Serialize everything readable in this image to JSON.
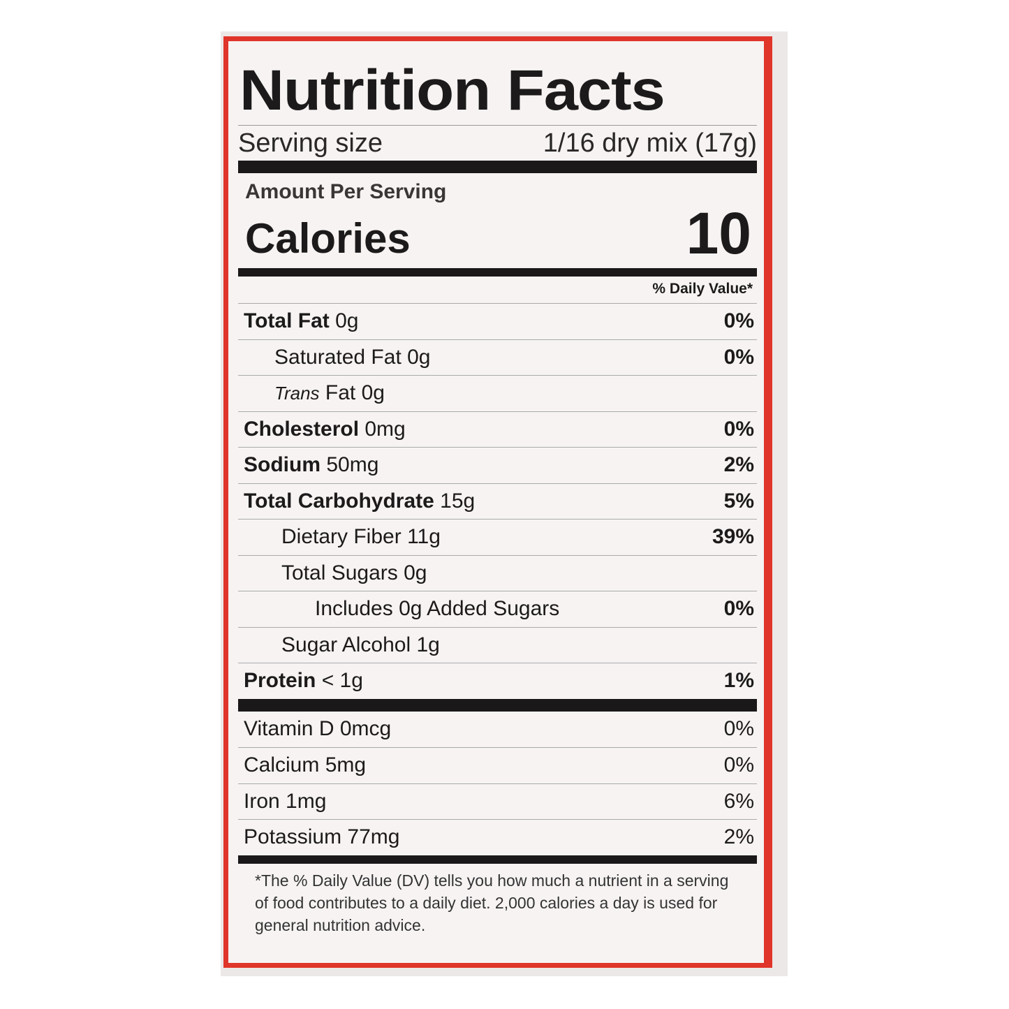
{
  "title": "Nutrition Facts",
  "serving": {
    "label": "Serving size",
    "value": "1/16 dry mix (17g)"
  },
  "amount_per_serving": "Amount Per Serving",
  "calories": {
    "label": "Calories",
    "value": "10"
  },
  "daily_value_header": "% Daily Value*",
  "nutrients": [
    {
      "name": "Total Fat",
      "amount": "0g",
      "dv": "0%"
    },
    {
      "name": "Saturated Fat",
      "amount": "0g",
      "dv": "0%"
    },
    {
      "name": "Trans",
      "name2": "Fat",
      "amount": "0g",
      "dv": ""
    },
    {
      "name": "Cholesterol",
      "amount": "0mg",
      "dv": "0%"
    },
    {
      "name": "Sodium",
      "amount": "50mg",
      "dv": "2%"
    },
    {
      "name": "Total Carbohydrate",
      "amount": "15g",
      "dv": "5%"
    },
    {
      "name": "Dietary Fiber",
      "amount": "11g",
      "dv": "39%"
    },
    {
      "name": "Total Sugars",
      "amount": "0g",
      "dv": ""
    },
    {
      "name": "Includes 0g Added Sugars",
      "amount": "",
      "dv": "0%"
    },
    {
      "name": "Sugar Alcohol",
      "amount": "1g",
      "dv": ""
    },
    {
      "name": "Protein",
      "amount": "< 1g",
      "dv": "1%"
    }
  ],
  "vitamins": [
    {
      "name": "Vitamin D",
      "amount": "0mcg",
      "dv": "0%"
    },
    {
      "name": "Calcium",
      "amount": "5mg",
      "dv": "0%"
    },
    {
      "name": "Iron",
      "amount": "1mg",
      "dv": "6%"
    },
    {
      "name": "Potassium",
      "amount": "77mg",
      "dv": "2%"
    }
  ],
  "footnote": "*The % Daily Value (DV) tells you how much a nutrient in a serving of food contributes to a daily diet. 2,000 calories a day is used for general nutrition advice.",
  "colors": {
    "border": "#e0352a",
    "ink": "#1a1818"
  }
}
